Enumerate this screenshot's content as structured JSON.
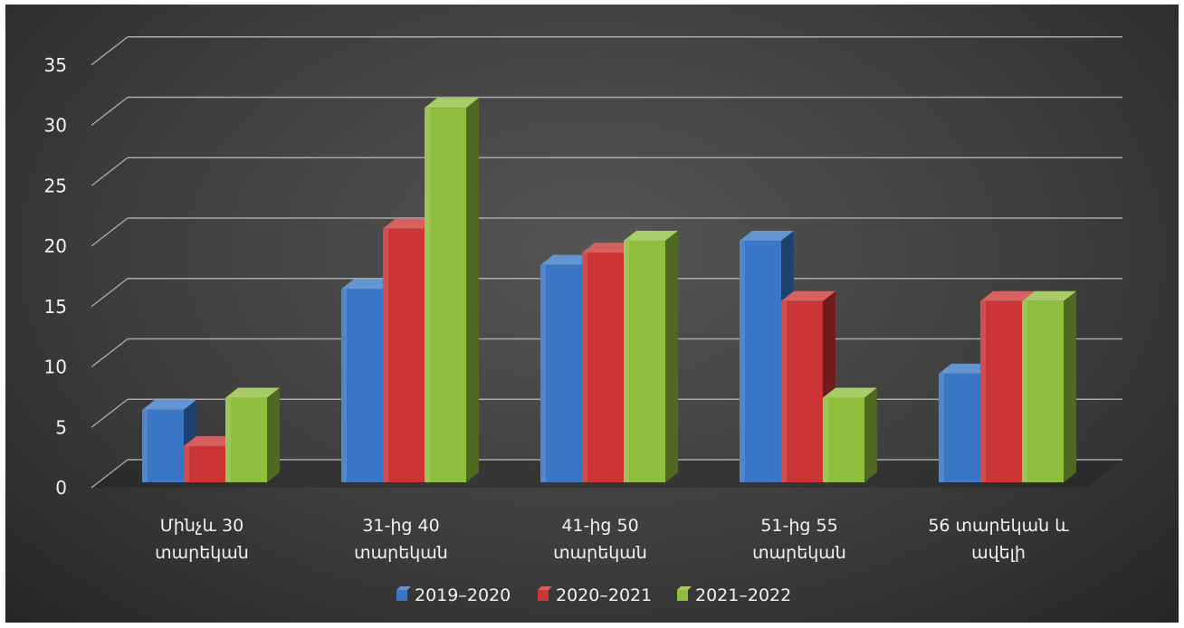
{
  "chart_data": {
    "type": "bar",
    "variant": "3d-clustered",
    "title": "",
    "xlabel": "",
    "ylabel": "",
    "ylim": [
      0,
      35
    ],
    "y_ticks": [
      0,
      5,
      10,
      15,
      20,
      25,
      30,
      35
    ],
    "grid": true,
    "legend_position": "bottom",
    "categories": [
      [
        "Մինչև 30",
        "տարեկան"
      ],
      [
        "31-ից 40",
        "տարեկան"
      ],
      [
        "41-ից  50",
        "տարեկան"
      ],
      [
        "51-ից  55",
        "տարեկան"
      ],
      [
        "56 տարեկան և",
        "ավելի"
      ]
    ],
    "series": [
      {
        "name": "2019–2020",
        "color": "#3a76c6",
        "values": [
          6,
          16,
          18,
          20,
          9
        ]
      },
      {
        "name": "2020–2021",
        "color": "#cc3535",
        "values": [
          3,
          21,
          19,
          15,
          15
        ]
      },
      {
        "name": "2021–2022",
        "color": "#8fbd3e",
        "values": [
          7,
          31,
          20,
          7,
          15
        ]
      }
    ]
  }
}
